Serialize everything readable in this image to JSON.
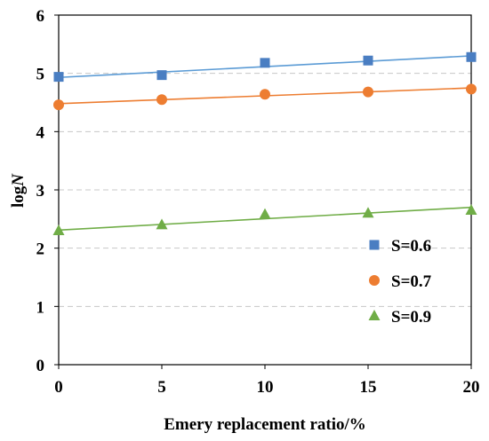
{
  "chart_data": {
    "type": "scatter",
    "title": "",
    "xlabel": "Emery replacement ratio/%",
    "ylabel_main": "log",
    "ylabel_italic": "N",
    "xlim": [
      0,
      20
    ],
    "ylim": [
      0,
      6
    ],
    "xticks": [
      "0",
      "5",
      "10",
      "15",
      "20"
    ],
    "yticks": [
      "0",
      "1",
      "2",
      "3",
      "4",
      "5",
      "6"
    ],
    "grid": "horizontal dashed",
    "legend_position": "right",
    "x": [
      0,
      5,
      10,
      15,
      20
    ],
    "series": [
      {
        "name": "S=0.6",
        "marker": "square",
        "color": "#4a7ec2",
        "line_color": "#5b9bd5",
        "values": [
          4.94,
          4.97,
          5.18,
          5.22,
          5.28
        ],
        "fit": [
          4.93,
          5.3
        ]
      },
      {
        "name": "S=0.7",
        "marker": "circle",
        "color": "#ed7d31",
        "line_color": "#ed7d31",
        "values": [
          4.46,
          4.55,
          4.64,
          4.68,
          4.73
        ],
        "fit": [
          4.48,
          4.75
        ]
      },
      {
        "name": "S=0.9",
        "marker": "triangle",
        "color": "#70ad47",
        "line_color": "#70ad47",
        "values": [
          2.3,
          2.4,
          2.58,
          2.6,
          2.65
        ],
        "fit": [
          2.31,
          2.7
        ]
      }
    ]
  }
}
